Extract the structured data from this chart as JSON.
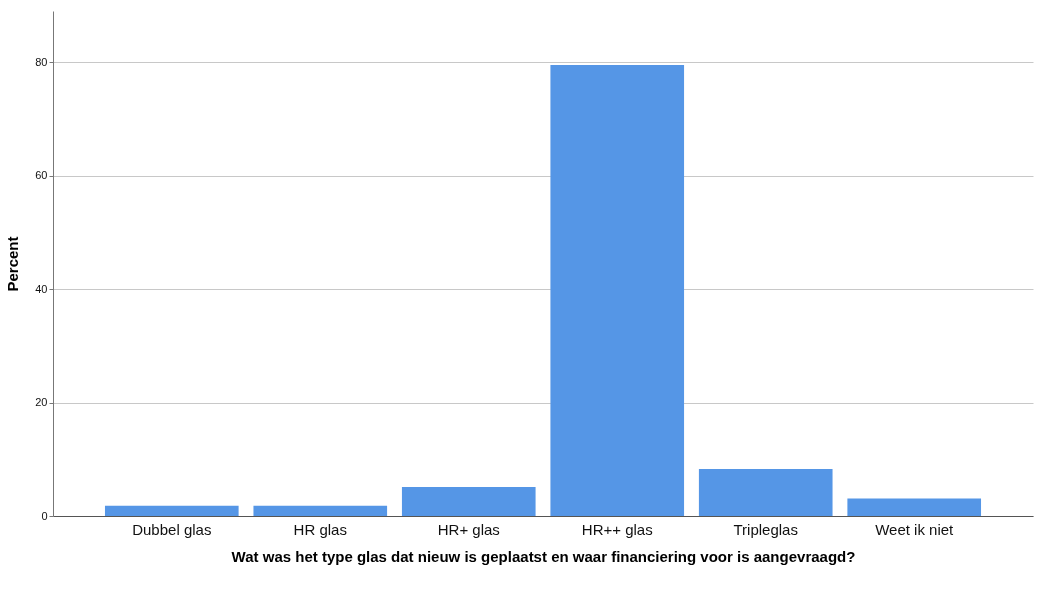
{
  "chart_data": {
    "type": "bar",
    "xlabel": "Wat was het type glas dat nieuw is geplaatst en waar financiering voor is aangevraagd?",
    "ylabel": "Percent",
    "categories": [
      "Dubbel glas",
      "HR glas",
      "HR+ glas",
      "HR++ glas",
      "Tripleglas",
      "Weet ik niet"
    ],
    "values": [
      1.8,
      1.8,
      5.1,
      79.5,
      8.3,
      3.1
    ],
    "color": "#5596e6",
    "ylim": [
      0,
      89
    ],
    "yticks": [
      0,
      20,
      40,
      60,
      80
    ],
    "grid": "y"
  }
}
